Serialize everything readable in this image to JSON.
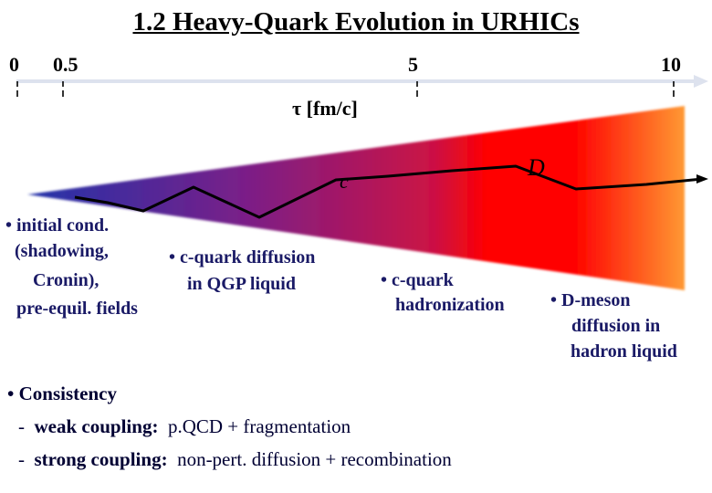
{
  "title": "1.2 Heavy-Quark Evolution in URHICs",
  "axis": {
    "ticks": [
      "0",
      "0.5",
      "5",
      "10"
    ],
    "label": "τ [fm/c]"
  },
  "diagram": {
    "quark_label": "c",
    "meson_label": "D",
    "colors": {
      "early": "#2233aa",
      "mid": "#7a1f88",
      "qgp": "#cc1144",
      "hadronization": "#ff0000",
      "late": "#ff9933",
      "trajectory": "#000000"
    }
  },
  "stages": [
    {
      "lines": [
        "• initial cond.",
        "(shadowing,",
        "Cronin),",
        "pre-equil. fields"
      ]
    },
    {
      "lines": [
        "• c-quark diffusion",
        "in QGP liquid"
      ]
    },
    {
      "lines": [
        "• c-quark",
        "hadronization"
      ]
    },
    {
      "lines": [
        "• D-meson",
        "diffusion in",
        "hadron liquid"
      ]
    }
  ],
  "consistency": {
    "heading": "• Consistency",
    "items": [
      {
        "dash": "-",
        "label": "weak coupling:",
        "text": "p.QCD + fragmentation"
      },
      {
        "dash": "-",
        "label": "strong coupling:",
        "text": "non-pert. diffusion + recombination"
      }
    ]
  }
}
